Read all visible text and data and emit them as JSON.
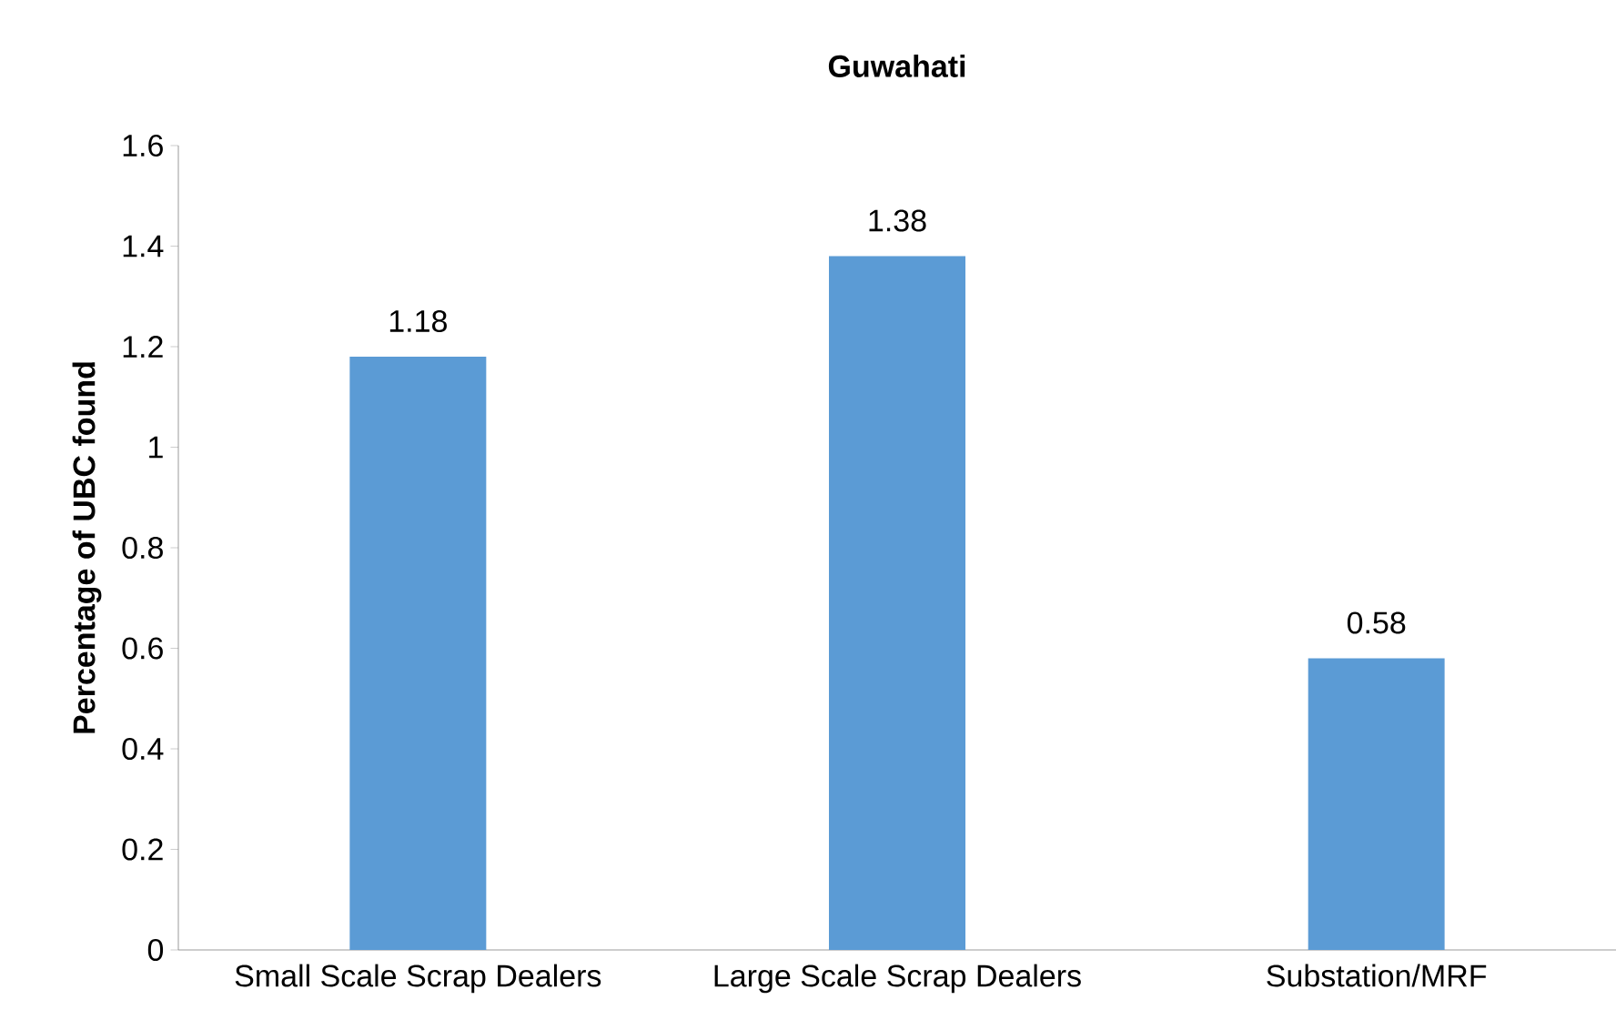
{
  "chart_data": {
    "type": "bar",
    "title": "Guwahati",
    "ylabel": "Percentage of UBC found",
    "categories": [
      "Small Scale Scrap Dealers",
      "Large Scale Scrap Dealers",
      "Substation/MRF"
    ],
    "values": [
      1.18,
      1.38,
      0.58
    ],
    "color": "#5b9bd5",
    "ylim": [
      0,
      1.6
    ],
    "yticks": [
      0,
      0.2,
      0.4,
      0.6,
      0.8,
      1,
      1.2,
      1.4,
      1.6
    ],
    "data_labels": true,
    "grid": false
  }
}
